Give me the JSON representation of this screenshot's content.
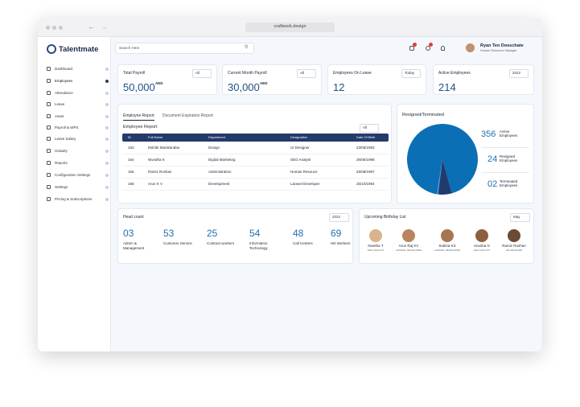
{
  "browser": {
    "url": "craftwork.design"
  },
  "brand": "Talentmate",
  "search_placeholder": "Search Here",
  "user": {
    "name": "Ryan Ten Doeschate",
    "role": "Human Resource Manager"
  },
  "nav": [
    "Dashboard",
    "Employees",
    "Attendance",
    "Leave",
    "Asset",
    "Payroll & WPS",
    "Leave Salary",
    "Gratuity",
    "Reports",
    "Configuration Settings",
    "Settings",
    "Pricing & Subscriptions"
  ],
  "stat_cards": [
    {
      "title": "Total Payroll",
      "filter": "All",
      "value": "50,000",
      "unit": "AED"
    },
    {
      "title": "Current Month Payroll",
      "filter": "All",
      "value": "30,000",
      "unit": "AED"
    },
    {
      "title": "Employees On Leave",
      "filter": "Today",
      "value": "12"
    },
    {
      "title": "Active Employees",
      "filter": "2022",
      "value": "214"
    }
  ],
  "report": {
    "tabs": [
      "Employee Report",
      "Document Expiration Report"
    ],
    "title": "Employee Report",
    "filter": "All",
    "headers": [
      "ID",
      "Full Name",
      "Department",
      "Designation",
      "Date Of Birth"
    ],
    "rows": [
      [
        "153",
        "Mohith Manikandan",
        "Design",
        "UI Designer",
        "23/05/1993"
      ],
      [
        "154",
        "Nivedha K",
        "Digital Marketing",
        "SEO Analyst",
        "26/05/1998"
      ],
      [
        "155",
        "Ramiz Roshan",
        "Administration",
        "Human Resouce",
        "26/08/1987"
      ],
      [
        "156",
        "Arun K V",
        "Development",
        "Laravel Developer",
        "25/10/1994"
      ]
    ]
  },
  "chart_data": {
    "type": "pie",
    "title": "Resigned/Terminated",
    "categories": [
      "Active Employees",
      "Resigned Employees",
      "Terminated Employees"
    ],
    "values": [
      356,
      24,
      2
    ],
    "value_labels": [
      "356",
      "24",
      "02"
    ],
    "colors": [
      "#0b6fb6",
      "#213b6c",
      "#3b97e6"
    ]
  },
  "headcount": {
    "title": "Head count",
    "filter": "2022",
    "items": [
      {
        "value": "03",
        "label": "Admin & Management"
      },
      {
        "value": "53",
        "label": "Customer Service"
      },
      {
        "value": "25",
        "label": "Contract workers"
      },
      {
        "value": "54",
        "label": "Information Technology"
      },
      {
        "value": "48",
        "label": "Call Centers"
      },
      {
        "value": "69",
        "label": "HD Workers"
      }
    ]
  },
  "birthdays": {
    "title": "Upcoming Birthday List",
    "filter": "May",
    "people": [
      {
        "name": "Nivetha T",
        "role": "SEO ANALYST"
      },
      {
        "name": "Arun Raj KV",
        "role": "LARAVEL DEVELOPER"
      },
      {
        "name": "Subina KS",
        "role": "LARAVEL DEVELOPER"
      },
      {
        "name": "Anusha G",
        "role": "SEO ANALYST"
      },
      {
        "name": "Ramiz Roshan",
        "role": "HR MANAGER"
      }
    ]
  }
}
